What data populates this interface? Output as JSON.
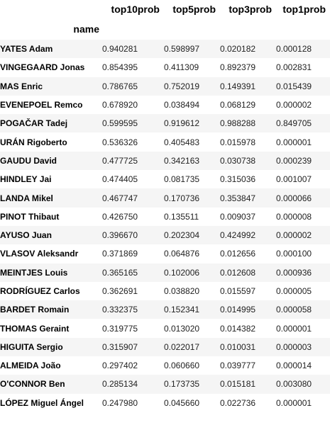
{
  "columns": [
    "top10prob",
    "top5prob",
    "top3prob",
    "top1prob"
  ],
  "index_name": "name",
  "rows": [
    {
      "name": "YATES Adam",
      "values": [
        "0.940281",
        "0.598997",
        "0.020182",
        "0.000128"
      ]
    },
    {
      "name": "VINGEGAARD Jonas",
      "values": [
        "0.854395",
        "0.411309",
        "0.892379",
        "0.002831"
      ]
    },
    {
      "name": "MAS Enric",
      "values": [
        "0.786765",
        "0.752019",
        "0.149391",
        "0.015439"
      ]
    },
    {
      "name": "EVENEPOEL Remco",
      "values": [
        "0.678920",
        "0.038494",
        "0.068129",
        "0.000002"
      ]
    },
    {
      "name": "POGAČAR Tadej",
      "values": [
        "0.599595",
        "0.919612",
        "0.988288",
        "0.849705"
      ]
    },
    {
      "name": "URÁN Rigoberto",
      "values": [
        "0.536326",
        "0.405483",
        "0.015978",
        "0.000001"
      ]
    },
    {
      "name": "GAUDU David",
      "values": [
        "0.477725",
        "0.342163",
        "0.030738",
        "0.000239"
      ]
    },
    {
      "name": "HINDLEY Jai",
      "values": [
        "0.474405",
        "0.081735",
        "0.315036",
        "0.001007"
      ]
    },
    {
      "name": "LANDA Mikel",
      "values": [
        "0.467747",
        "0.170736",
        "0.353847",
        "0.000066"
      ]
    },
    {
      "name": "PINOT Thibaut",
      "values": [
        "0.426750",
        "0.135511",
        "0.009037",
        "0.000008"
      ]
    },
    {
      "name": "AYUSO Juan",
      "values": [
        "0.396670",
        "0.202304",
        "0.424992",
        "0.000002"
      ]
    },
    {
      "name": "VLASOV Aleksandr",
      "values": [
        "0.371869",
        "0.064876",
        "0.012656",
        "0.000100"
      ]
    },
    {
      "name": "MEINTJES Louis",
      "values": [
        "0.365165",
        "0.102006",
        "0.012608",
        "0.000936"
      ]
    },
    {
      "name": "RODRÍGUEZ Carlos",
      "values": [
        "0.362691",
        "0.038820",
        "0.015597",
        "0.000005"
      ]
    },
    {
      "name": "BARDET Romain",
      "values": [
        "0.332375",
        "0.152341",
        "0.014995",
        "0.000058"
      ]
    },
    {
      "name": "THOMAS Geraint",
      "values": [
        "0.319775",
        "0.013020",
        "0.014382",
        "0.000001"
      ]
    },
    {
      "name": "HIGUITA Sergio",
      "values": [
        "0.315907",
        "0.022017",
        "0.010031",
        "0.000003"
      ]
    },
    {
      "name": "ALMEIDA João",
      "values": [
        "0.297402",
        "0.060660",
        "0.039777",
        "0.000014"
      ]
    },
    {
      "name": "O'CONNOR Ben",
      "values": [
        "0.285134",
        "0.173735",
        "0.015181",
        "0.003080"
      ]
    },
    {
      "name": "LÓPEZ Miguel Ángel",
      "values": [
        "0.247980",
        "0.045660",
        "0.022736",
        "0.000001"
      ]
    }
  ]
}
